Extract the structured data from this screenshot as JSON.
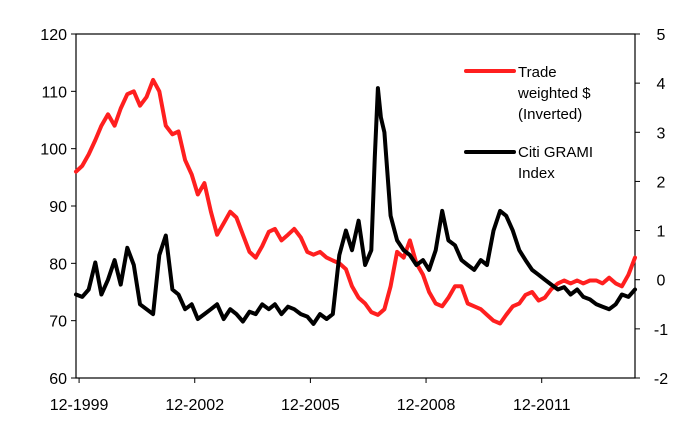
{
  "chart_data": {
    "type": "line",
    "title": "",
    "x_tick_labels": [
      "12-1999",
      "12-2002",
      "12-2005",
      "12-2008",
      "12-2011"
    ],
    "x_range": [
      1999.92,
      2014.42
    ],
    "y_left": {
      "range": [
        60,
        120
      ],
      "ticks": [
        "60",
        "70",
        "80",
        "90",
        "100",
        "110",
        "120"
      ]
    },
    "y_right": {
      "range": [
        -2,
        5
      ],
      "ticks": [
        "-2",
        "-1",
        "0",
        "1",
        "2",
        "3",
        "4",
        "5"
      ]
    },
    "grid": false,
    "legend_position": "top-right, inside plot",
    "series": [
      {
        "name": "Trade weighted $ (Inverted)",
        "legend_lines": [
          "Trade",
          "weighted $",
          "(Inverted)"
        ],
        "axis": "left",
        "color": "#ff1f1f",
        "x": [
          1999.92,
          2000.08,
          2000.25,
          2000.42,
          2000.58,
          2000.75,
          2000.92,
          2001.08,
          2001.25,
          2001.42,
          2001.58,
          2001.75,
          2001.92,
          2002.08,
          2002.25,
          2002.42,
          2002.58,
          2002.75,
          2002.92,
          2003.08,
          2003.25,
          2003.42,
          2003.58,
          2003.75,
          2003.92,
          2004.08,
          2004.25,
          2004.42,
          2004.58,
          2004.75,
          2004.92,
          2005.08,
          2005.25,
          2005.42,
          2005.58,
          2005.75,
          2005.92,
          2006.08,
          2006.25,
          2006.42,
          2006.58,
          2006.75,
          2006.92,
          2007.08,
          2007.25,
          2007.42,
          2007.58,
          2007.75,
          2007.92,
          2008.08,
          2008.25,
          2008.42,
          2008.58,
          2008.75,
          2008.92,
          2009.08,
          2009.25,
          2009.42,
          2009.58,
          2009.75,
          2009.92,
          2010.08,
          2010.25,
          2010.42,
          2010.58,
          2010.75,
          2010.92,
          2011.08,
          2011.25,
          2011.42,
          2011.58,
          2011.75,
          2011.92,
          2012.08,
          2012.25,
          2012.42,
          2012.58,
          2012.75,
          2012.92,
          2013.08,
          2013.25,
          2013.42,
          2013.58,
          2013.75,
          2013.92,
          2014.08,
          2014.25,
          2014.42
        ],
        "values": [
          96,
          97,
          99,
          101.5,
          104,
          106,
          104,
          107,
          109.5,
          110,
          107.5,
          109,
          112,
          110,
          104,
          102.5,
          103,
          98,
          95.5,
          92,
          94,
          89,
          85,
          87,
          89,
          88,
          85,
          82,
          81,
          83,
          85.5,
          86,
          84,
          85,
          86,
          84.5,
          82,
          81.5,
          82,
          81,
          80.5,
          80,
          79,
          76,
          74,
          73,
          71.5,
          71,
          72,
          76,
          82,
          81,
          84,
          80,
          78,
          75,
          73,
          72.5,
          74,
          76,
          76,
          73,
          72.5,
          72,
          71,
          70,
          69.5,
          71,
          72.5,
          73,
          74.5,
          75,
          73.5,
          74,
          75.5,
          76.5,
          77,
          76.5,
          77,
          76.5,
          77,
          77,
          76.5,
          77.5,
          76.5,
          76,
          78,
          81
        ]
      },
      {
        "name": "Citi GRAMI Index",
        "legend_lines": [
          "Citi GRAMI",
          "Index"
        ],
        "axis": "right",
        "color": "#000000",
        "x": [
          1999.92,
          2000.08,
          2000.25,
          2000.42,
          2000.58,
          2000.75,
          2000.92,
          2001.08,
          2001.25,
          2001.42,
          2001.58,
          2001.75,
          2001.92,
          2002.08,
          2002.25,
          2002.42,
          2002.58,
          2002.75,
          2002.92,
          2003.08,
          2003.25,
          2003.42,
          2003.58,
          2003.75,
          2003.92,
          2004.08,
          2004.25,
          2004.42,
          2004.58,
          2004.75,
          2004.92,
          2005.08,
          2005.25,
          2005.42,
          2005.58,
          2005.75,
          2005.92,
          2006.08,
          2006.25,
          2006.42,
          2006.58,
          2006.75,
          2006.92,
          2007.08,
          2007.25,
          2007.42,
          2007.58,
          2007.67,
          2007.75,
          2007.83,
          2007.92,
          2008.08,
          2008.25,
          2008.42,
          2008.58,
          2008.75,
          2008.92,
          2009.08,
          2009.25,
          2009.42,
          2009.58,
          2009.75,
          2009.92,
          2010.08,
          2010.25,
          2010.42,
          2010.58,
          2010.75,
          2010.92,
          2011.08,
          2011.25,
          2011.42,
          2011.58,
          2011.75,
          2011.92,
          2012.08,
          2012.25,
          2012.42,
          2012.58,
          2012.75,
          2012.92,
          2013.08,
          2013.25,
          2013.42,
          2013.58,
          2013.75,
          2013.92,
          2014.08,
          2014.25,
          2014.42
        ],
        "values": [
          -0.3,
          -0.35,
          -0.2,
          0.35,
          -0.3,
          0,
          0.4,
          -0.1,
          0.65,
          0.3,
          -0.5,
          -0.6,
          -0.7,
          0.5,
          0.9,
          -0.2,
          -0.3,
          -0.6,
          -0.5,
          -0.8,
          -0.7,
          -0.6,
          -0.5,
          -0.8,
          -0.6,
          -0.7,
          -0.85,
          -0.65,
          -0.7,
          -0.5,
          -0.6,
          -0.5,
          -0.7,
          -0.55,
          -0.6,
          -0.7,
          -0.75,
          -0.9,
          -0.7,
          -0.8,
          -0.7,
          0.5,
          1.0,
          0.6,
          1.2,
          0.3,
          0.6,
          2.5,
          3.9,
          3.3,
          3.0,
          1.3,
          0.8,
          0.6,
          0.5,
          0.3,
          0.4,
          0.2,
          0.6,
          1.4,
          0.8,
          0.7,
          0.4,
          0.3,
          0.2,
          0.4,
          0.3,
          1.0,
          1.4,
          1.3,
          1.0,
          0.6,
          0.4,
          0.2,
          0.1,
          0.0,
          -0.1,
          -0.2,
          -0.15,
          -0.3,
          -0.2,
          -0.35,
          -0.4,
          -0.5,
          -0.55,
          -0.6,
          -0.5,
          -0.3,
          -0.35,
          -0.2
        ]
      }
    ]
  }
}
